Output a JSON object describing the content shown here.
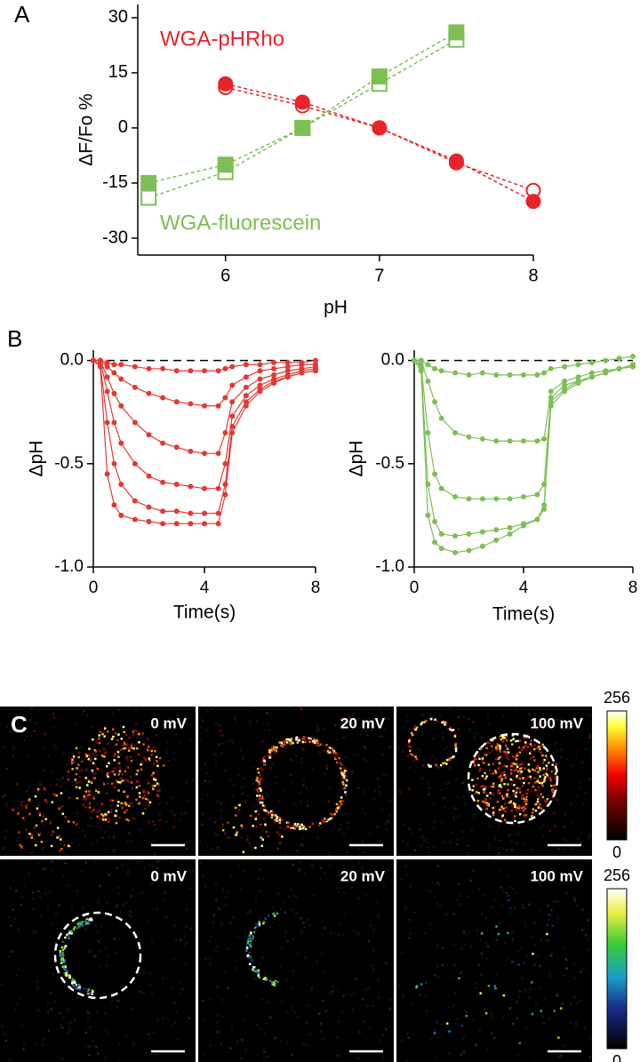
{
  "panel_labels": [
    "A",
    "B",
    "C"
  ],
  "chart_data": [
    {
      "type": "scatter",
      "xlabel": "pH",
      "ylabel": "ΔF/Fo %",
      "x": [
        5.5,
        6,
        6.5,
        7,
        7.5,
        8
      ],
      "xlim": [
        5.43,
        8.0
      ],
      "xticks": [
        6,
        7,
        8
      ],
      "ylim": [
        -34.6,
        33.6
      ],
      "yticks": [
        30,
        15,
        0,
        -15,
        -30
      ],
      "series": [
        {
          "color": "#e8242a",
          "marker": "circle",
          "filled": false,
          "values": [
            null,
            11,
            6,
            0,
            -9.5,
            -17
          ]
        },
        {
          "name": "WGA-pHRho",
          "color": "#e8242a",
          "marker": "circle",
          "filled": true,
          "values": [
            null,
            12,
            7,
            0,
            -9,
            -20
          ]
        },
        {
          "color": "#7dbf56",
          "marker": "square",
          "filled": false,
          "values": [
            -19,
            -12,
            0,
            12,
            24,
            null
          ]
        },
        {
          "name": "WGA-fluorescein",
          "color": "#7dbf56",
          "marker": "square",
          "filled": true,
          "values": [
            -15,
            -10,
            0,
            14,
            26,
            null
          ]
        }
      ]
    },
    {
      "type": "line",
      "xlabel": "Time(s)",
      "ylabel": "ΔpH",
      "x": [
        0,
        0.25,
        0.5,
        0.75,
        1,
        1.5,
        2,
        2.5,
        3,
        3.5,
        4,
        4.5,
        4.75,
        5,
        5.5,
        6,
        6.5,
        7,
        7.5,
        8
      ],
      "xlim": [
        0,
        8
      ],
      "xticks": [
        0,
        4,
        8
      ],
      "ylim": [
        -1.0,
        0.05
      ],
      "yticks": [
        {
          "value": 0,
          "label": "0.0"
        },
        {
          "value": -0.5,
          "label": "-0.5"
        },
        {
          "value": -1.0,
          "label": "-1.0"
        }
      ],
      "hline": 0,
      "series": [
        {
          "color": "#e03a36",
          "values": [
            0,
            0,
            -0.01,
            -0.02,
            -0.02,
            -0.03,
            -0.04,
            -0.04,
            -0.05,
            -0.05,
            -0.05,
            -0.05,
            -0.04,
            -0.03,
            -0.02,
            -0.02,
            -0.01,
            -0.01,
            -0.01,
            0
          ]
        },
        {
          "color": "#e03a36",
          "values": [
            0,
            0,
            -0.03,
            -0.06,
            -0.09,
            -0.13,
            -0.16,
            -0.18,
            -0.2,
            -0.21,
            -0.22,
            -0.22,
            -0.18,
            -0.12,
            -0.08,
            -0.05,
            -0.04,
            -0.03,
            -0.02,
            -0.02
          ]
        },
        {
          "color": "#e03a36",
          "values": [
            0,
            0,
            -0.08,
            -0.16,
            -0.22,
            -0.3,
            -0.36,
            -0.4,
            -0.42,
            -0.44,
            -0.45,
            -0.45,
            -0.35,
            -0.2,
            -0.13,
            -0.09,
            -0.07,
            -0.05,
            -0.04,
            -0.03
          ]
        },
        {
          "color": "#e03a36",
          "values": [
            0,
            0,
            -0.15,
            -0.3,
            -0.4,
            -0.5,
            -0.56,
            -0.59,
            -0.6,
            -0.61,
            -0.62,
            -0.62,
            -0.5,
            -0.27,
            -0.17,
            -0.12,
            -0.09,
            -0.07,
            -0.05,
            -0.04
          ]
        },
        {
          "color": "#e03a36",
          "values": [
            0,
            -0.02,
            -0.3,
            -0.5,
            -0.6,
            -0.68,
            -0.71,
            -0.73,
            -0.73,
            -0.74,
            -0.74,
            -0.74,
            -0.6,
            -0.32,
            -0.2,
            -0.14,
            -0.1,
            -0.08,
            -0.06,
            -0.05
          ]
        },
        {
          "color": "#e03a36",
          "values": [
            0,
            -0.03,
            -0.55,
            -0.7,
            -0.75,
            -0.77,
            -0.78,
            -0.79,
            -0.79,
            -0.79,
            -0.79,
            -0.79,
            -0.65,
            -0.35,
            -0.22,
            -0.15,
            -0.11,
            -0.08,
            -0.06,
            -0.05
          ]
        }
      ]
    },
    {
      "type": "line",
      "xlabel": "Time(s)",
      "ylabel": "ΔpH",
      "x": [
        0,
        0.25,
        0.5,
        0.75,
        1,
        1.5,
        2,
        2.5,
        3,
        3.5,
        4,
        4.5,
        4.75,
        5,
        5.5,
        6,
        6.5,
        7,
        7.5,
        8
      ],
      "xlim": [
        0,
        8
      ],
      "xticks": [
        0,
        4,
        8
      ],
      "ylim": [
        -1.0,
        0.05
      ],
      "yticks": [
        {
          "value": 0,
          "label": "0.0"
        },
        {
          "value": -0.5,
          "label": "-0.5"
        },
        {
          "value": -1.0,
          "label": "-1.0"
        }
      ],
      "hline": 0,
      "series": [
        {
          "color": "#7dbf56",
          "values": [
            0,
            0,
            -0.02,
            -0.04,
            -0.05,
            -0.06,
            -0.07,
            -0.06,
            -0.07,
            -0.07,
            -0.07,
            -0.07,
            -0.06,
            -0.04,
            -0.03,
            -0.02,
            -0.01,
            0,
            0.01,
            0.02
          ]
        },
        {
          "color": "#7dbf56",
          "values": [
            0,
            0,
            -0.1,
            -0.2,
            -0.28,
            -0.35,
            -0.37,
            -0.38,
            -0.39,
            -0.39,
            -0.39,
            -0.39,
            -0.38,
            -0.15,
            -0.1,
            -0.08,
            -0.06,
            -0.05,
            -0.04,
            -0.03
          ]
        },
        {
          "color": "#7dbf56",
          "values": [
            0,
            -0.02,
            -0.35,
            -0.55,
            -0.62,
            -0.66,
            -0.67,
            -0.67,
            -0.67,
            -0.67,
            -0.66,
            -0.65,
            -0.6,
            -0.18,
            -0.12,
            -0.1,
            -0.08,
            -0.06,
            -0.04,
            -0.03
          ]
        },
        {
          "color": "#7dbf56",
          "values": [
            0,
            -0.03,
            -0.6,
            -0.78,
            -0.84,
            -0.85,
            -0.84,
            -0.83,
            -0.82,
            -0.81,
            -0.79,
            -0.77,
            -0.7,
            -0.2,
            -0.14,
            -0.1,
            -0.08,
            -0.06,
            -0.04,
            -0.02
          ]
        },
        {
          "color": "#7dbf56",
          "values": [
            0,
            -0.05,
            -0.75,
            -0.88,
            -0.91,
            -0.93,
            -0.92,
            -0.9,
            -0.87,
            -0.84,
            -0.8,
            -0.77,
            -0.72,
            -0.22,
            -0.15,
            -0.11,
            -0.08,
            -0.06,
            -0.04,
            -0.02
          ]
        }
      ]
    }
  ],
  "panel_c": {
    "rows": [
      {
        "tiles": [
          "0 mV",
          "20 mV",
          "100 mV"
        ],
        "colorbar": [
          "256",
          "0"
        ]
      },
      {
        "tiles": [
          "0 mV",
          "20 mV",
          "100 mV"
        ],
        "colorbar": [
          "256",
          "0"
        ]
      }
    ]
  }
}
